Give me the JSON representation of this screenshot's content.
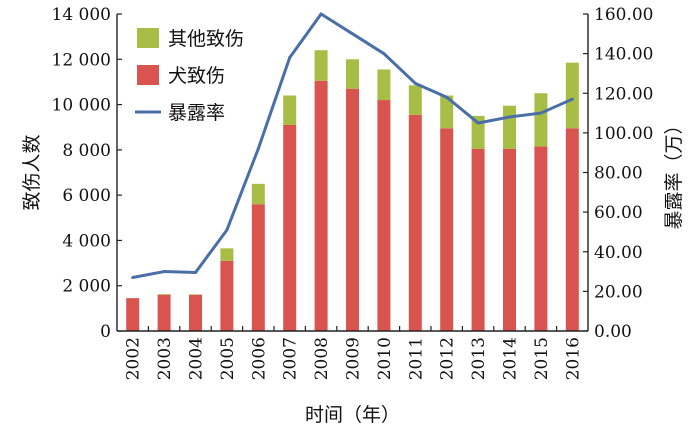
{
  "chart_data": {
    "type": "bar",
    "categories": [
      "2002",
      "2003",
      "2004",
      "2005",
      "2006",
      "2007",
      "2008",
      "2009",
      "2010",
      "2011",
      "2012",
      "2013",
      "2014",
      "2015",
      "2016"
    ],
    "series": [
      {
        "name": "犬致伤",
        "kind": "bar",
        "stack": "injury",
        "color": "#d9534f",
        "values": [
          1450,
          1600,
          1600,
          3100,
          5600,
          9100,
          11050,
          10700,
          10200,
          9550,
          8950,
          8050,
          8050,
          8150,
          8950
        ]
      },
      {
        "name": "其他致伤",
        "kind": "bar",
        "stack": "injury",
        "color": "#a8bd45",
        "values": [
          0,
          30,
          20,
          550,
          900,
          1300,
          1350,
          1300,
          1350,
          1300,
          1450,
          1450,
          1900,
          2350,
          2900
        ]
      },
      {
        "name": "暴露率",
        "kind": "line",
        "axis": "right",
        "color": "#4a6ea8",
        "values": [
          27.0,
          30.0,
          29.5,
          51.0,
          92.0,
          138.0,
          160.0,
          150.0,
          140.0,
          125.0,
          118.0,
          105.0,
          108.0,
          110.0,
          117.0
        ]
      }
    ],
    "xlabel": "时间（年）",
    "ylabel": "致伤人数",
    "y2label": "暴露率（万）",
    "ylim": [
      0,
      14000
    ],
    "y2lim": [
      0,
      160
    ],
    "yticks": [
      "0",
      "2 000",
      "4 000",
      "6 000",
      "8 000",
      "10 000",
      "12 000",
      "14 000"
    ],
    "y2ticks": [
      "0.00",
      "20.00",
      "40.00",
      "60.00",
      "80.00",
      "100.00",
      "120.00",
      "140.00",
      "160.00"
    ],
    "grid": false,
    "legend_position": "top-left",
    "legend": [
      "其他致伤",
      "犬致伤",
      "暴露率"
    ]
  }
}
